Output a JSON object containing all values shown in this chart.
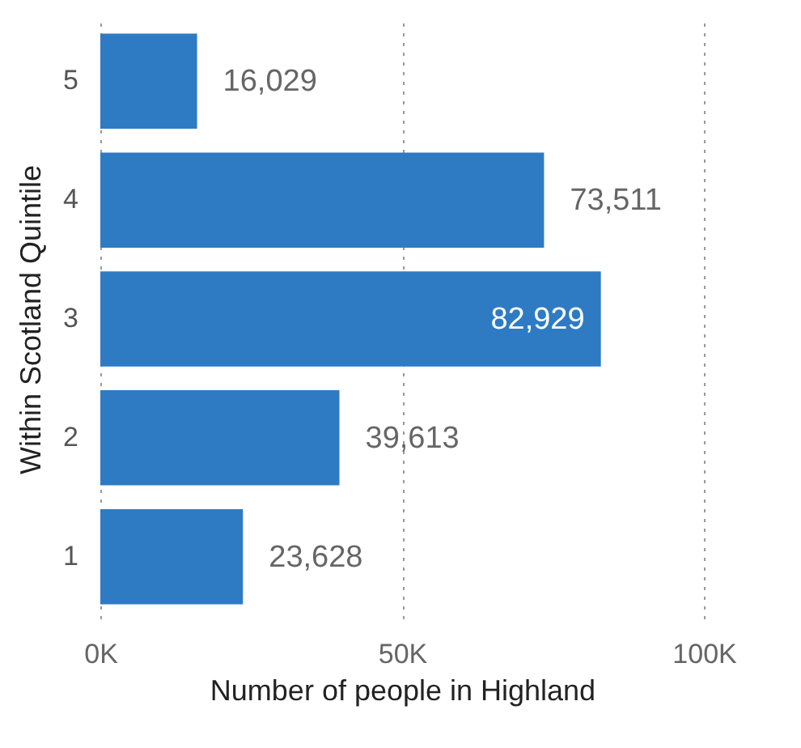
{
  "chart_data": {
    "type": "bar",
    "orientation": "horizontal",
    "xlabel": "Number of people in Highland",
    "ylabel": "Within Scotland Quintile",
    "categories": [
      "5",
      "4",
      "3",
      "2",
      "1"
    ],
    "values": [
      16029,
      73511,
      82929,
      39613,
      23628
    ],
    "color": "#2e7bc4",
    "xlim": [
      0,
      100000
    ],
    "xticks": [
      {
        "value": 0,
        "label": "0K"
      },
      {
        "value": 50000,
        "label": "50K"
      },
      {
        "value": 100000,
        "label": "100K"
      }
    ],
    "grid": "x",
    "value_labels": [
      "16,029",
      "73,511",
      "82,929",
      "39,613",
      "23,628"
    ]
  }
}
